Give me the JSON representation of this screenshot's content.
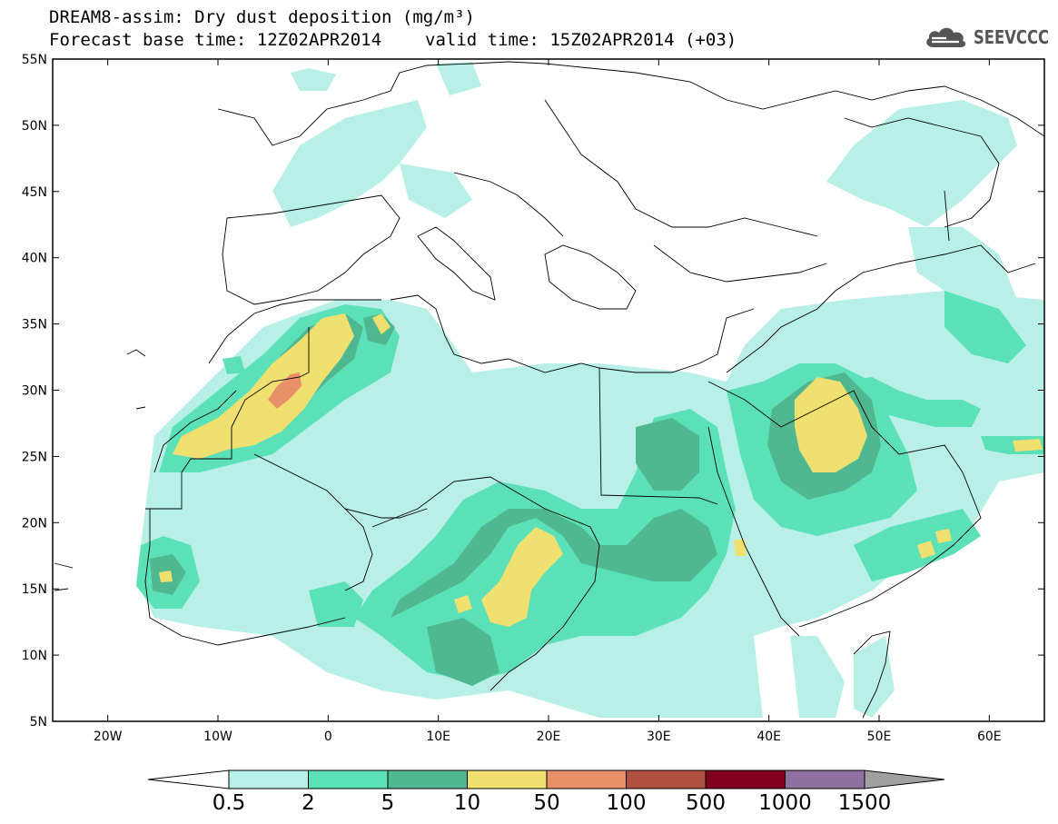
{
  "header": {
    "title_line1": "DREAM8-assim: Dry dust deposition (mg/m³)",
    "title_line2_a": "Forecast base time: 12Z02APR2014",
    "title_line2_b": "valid time: 15Z02APR2014 (+03)"
  },
  "logo": {
    "text": "SEEVCCC",
    "icon": "cloud-icon"
  },
  "map": {
    "lon_range": [
      -25,
      65
    ],
    "lat_range": [
      5,
      55
    ],
    "lat_ticks": [
      {
        "value": 55,
        "label": "55N"
      },
      {
        "value": 50,
        "label": "50N"
      },
      {
        "value": 45,
        "label": "45N"
      },
      {
        "value": 40,
        "label": "40N"
      },
      {
        "value": 35,
        "label": "35N"
      },
      {
        "value": 30,
        "label": "30N"
      },
      {
        "value": 25,
        "label": "25N"
      },
      {
        "value": 20,
        "label": "20N"
      },
      {
        "value": 15,
        "label": "15N"
      },
      {
        "value": 10,
        "label": "10N"
      },
      {
        "value": 5,
        "label": "5N"
      }
    ],
    "lon_ticks": [
      {
        "value": -20,
        "label": "20W"
      },
      {
        "value": -10,
        "label": "10W"
      },
      {
        "value": 0,
        "label": "0"
      },
      {
        "value": 10,
        "label": "10E"
      },
      {
        "value": 20,
        "label": "20E"
      },
      {
        "value": 30,
        "label": "30E"
      },
      {
        "value": 40,
        "label": "40E"
      },
      {
        "value": 50,
        "label": "50E"
      },
      {
        "value": 60,
        "label": "60E"
      }
    ]
  },
  "legend": {
    "under_color": "#ffffff",
    "over_color": "#a0a0a0",
    "colors": [
      "#b8f0e8",
      "#5ce0b8",
      "#50b890",
      "#f0e070",
      "#e89068",
      "#b05040",
      "#800020",
      "#9070a0"
    ],
    "labels": [
      "0.5",
      "2",
      "5",
      "10",
      "50",
      "100",
      "500",
      "1000",
      "1500"
    ]
  }
}
